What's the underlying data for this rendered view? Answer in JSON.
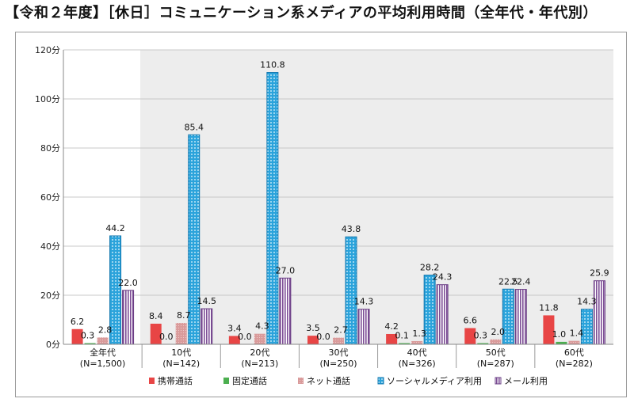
{
  "title": "【令和２年度】［休日］コミュニケーション系メディアの平均利用時間（全年代・年代別）",
  "chart_data": {
    "type": "bar",
    "ylim": [
      0,
      120
    ],
    "yticks": [
      "0分",
      "20分",
      "40分",
      "60分",
      "80分",
      "100分",
      "120分"
    ],
    "ytick_values": [
      0,
      20,
      40,
      60,
      80,
      100,
      120
    ],
    "grid": true,
    "legend_position": "bottom",
    "categories": [
      {
        "line1": "全年代",
        "line2": "(N=1,500)"
      },
      {
        "line1": "10代",
        "line2": "(N=142)"
      },
      {
        "line1": "20代",
        "line2": "(N=213)"
      },
      {
        "line1": "30代",
        "line2": "(N=250)"
      },
      {
        "line1": "40代",
        "line2": "(N=326)"
      },
      {
        "line1": "50代",
        "line2": "(N=287)"
      },
      {
        "line1": "60代",
        "line2": "(N=282)"
      }
    ],
    "series": [
      {
        "name": "携帯通話",
        "color": "#e84545",
        "values": [
          6.2,
          8.4,
          3.4,
          3.5,
          4.2,
          6.6,
          11.8
        ],
        "labels": [
          "6.2",
          "8.4",
          "3.4",
          "3.5",
          "4.2",
          "6.6",
          "11.8"
        ]
      },
      {
        "name": "固定通話",
        "color": "#4caf50",
        "values": [
          0.3,
          0.0,
          0.0,
          0.0,
          0.1,
          0.3,
          1.0
        ],
        "labels": [
          "0.3",
          "0.0",
          "0.0",
          "0.0",
          "0.1",
          "0.3",
          "1.0"
        ]
      },
      {
        "name": "ネット通話",
        "color": "#d9a0a0",
        "values": [
          2.8,
          8.7,
          4.3,
          2.7,
          1.3,
          2.0,
          1.4
        ],
        "labels": [
          "2.8",
          "8.7",
          "4.3",
          "2.7",
          "1.3",
          "2.0",
          "1.4"
        ]
      },
      {
        "name": "ソーシャルメディア利用",
        "color": "#29a8df",
        "values": [
          44.2,
          85.4,
          110.8,
          43.8,
          28.2,
          22.5,
          14.3
        ],
        "labels": [
          "44.2",
          "85.4",
          "110.8",
          "43.8",
          "28.2",
          "22.5",
          "14.3"
        ]
      },
      {
        "name": "メール利用",
        "color": "#8e5aa8",
        "values": [
          22.0,
          14.5,
          27.0,
          14.3,
          24.3,
          22.4,
          25.9
        ],
        "labels": [
          "22.0",
          "14.5",
          "27.0",
          "14.3",
          "24.3",
          "22.4",
          "25.9"
        ]
      }
    ]
  }
}
